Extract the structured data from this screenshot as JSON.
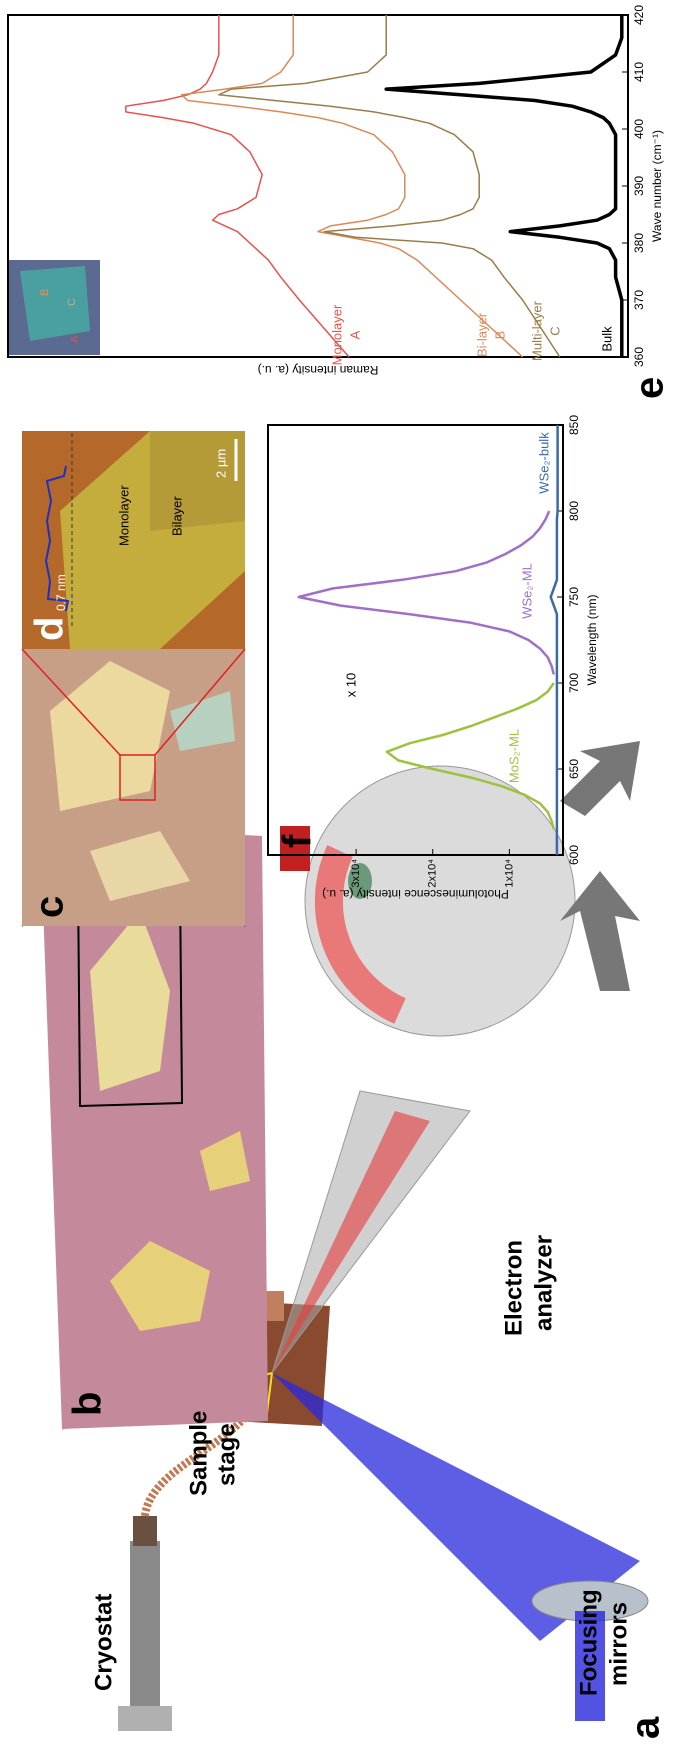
{
  "figure": {
    "panels": [
      "a",
      "b",
      "c",
      "d",
      "e",
      "f"
    ],
    "setup_labels": {
      "cryostat": "Cryostat",
      "sample_stage": [
        "Sample",
        "stage"
      ],
      "focusing_mirrors": [
        "Focusing",
        "mirrors"
      ],
      "electron_analyzer": [
        "Electron",
        "analyzer"
      ]
    },
    "afm": {
      "step": "0.7 nm",
      "monolayer": "Monolayer",
      "bilayer": "Bilayer",
      "scale": "2 µm"
    },
    "inset_labels": [
      "A",
      "B",
      "C"
    ]
  },
  "chart_data": [
    {
      "type": "line",
      "x": [
        600,
        605,
        610,
        615,
        620,
        625,
        630,
        635,
        640,
        645,
        650,
        655,
        660,
        665,
        670,
        675,
        680,
        685,
        690,
        695,
        700,
        705,
        710,
        715,
        720,
        725,
        730,
        735,
        740,
        745,
        750,
        755,
        760,
        765,
        770,
        775,
        780,
        785,
        790,
        795,
        800,
        805,
        810,
        815,
        820,
        825,
        830,
        835,
        840,
        845,
        850
      ],
      "xlim": [
        600,
        850
      ],
      "xticks": [
        600,
        650,
        700,
        750,
        800,
        850
      ],
      "xlabel": "Wavelength (nm)",
      "ylabel": "Photoluminescence intensity (a. u.)",
      "ylim": [
        3000,
        41500
      ],
      "yticks": [
        {
          "value": 10000,
          "label": "1x10⁴"
        },
        {
          "value": 20000,
          "label": "2x10⁴"
        },
        {
          "value": 30000,
          "label": "3x10⁴"
        }
      ],
      "annotation": "x 10",
      "series": [
        {
          "name": "MoS₂-ML",
          "color": "#9dc23c",
          "values": [
            null,
            null,
            null,
            4200,
            4500,
            5000,
            6000,
            8000,
            11000,
            15000,
            20000,
            24500,
            26000,
            23000,
            18500,
            15000,
            12000,
            9000,
            6500,
            5000,
            4200,
            null,
            null,
            null,
            null,
            null,
            null,
            null,
            null,
            null,
            null,
            null,
            null,
            null,
            null,
            null,
            null,
            null,
            null,
            null,
            null,
            null,
            null,
            null,
            null,
            null,
            null,
            null,
            null,
            null,
            null
          ]
        },
        {
          "name": "WSe₂-ML",
          "color": "#a070c8",
          "values": [
            null,
            null,
            null,
            null,
            null,
            null,
            null,
            null,
            null,
            null,
            null,
            null,
            null,
            null,
            null,
            null,
            null,
            null,
            null,
            null,
            null,
            4200,
            4500,
            5000,
            6000,
            7500,
            10000,
            15000,
            23000,
            32000,
            37500,
            33000,
            24000,
            17000,
            13000,
            10500,
            8500,
            7000,
            6000,
            5300,
            4800,
            null,
            null,
            null,
            null,
            null,
            null,
            null,
            null,
            null,
            null
          ]
        },
        {
          "name": "WSe₂-bulk",
          "color": "#3a6aa8",
          "values": [
            3800,
            3800,
            3800,
            3800,
            3800,
            3800,
            3800,
            3800,
            3800,
            3800,
            3800,
            3800,
            3800,
            3800,
            3800,
            3800,
            3800,
            3800,
            3800,
            3800,
            3800,
            3800,
            3800,
            3800,
            3800,
            3800,
            3800,
            3800,
            3800,
            4200,
            4600,
            4200,
            3800,
            3800,
            3800,
            3800,
            3800,
            3800,
            3800,
            3800,
            3700,
            3700,
            3700,
            3700,
            3700,
            3700,
            3700,
            3700,
            3700,
            3700,
            3700
          ]
        }
      ]
    },
    {
      "type": "line",
      "x": [
        360,
        365,
        370,
        374,
        377,
        379,
        380,
        381,
        382,
        383,
        384,
        385,
        386,
        388,
        392,
        396,
        399,
        401,
        402,
        403,
        404,
        405,
        406,
        407,
        408,
        410,
        413,
        416,
        420
      ],
      "xlim": [
        360,
        420
      ],
      "xticks": [
        360,
        370,
        380,
        390,
        400,
        410,
        420
      ],
      "xlabel": "Wave number (cm⁻¹)",
      "ylabel": "Raman intensity (a. u.)",
      "ylim": [
        0,
        100
      ],
      "series": [
        {
          "name": "Monolayer",
          "tag": "A",
          "color": "#e8524e",
          "values": [
            45,
            49,
            53,
            56,
            58,
            60,
            61,
            62,
            63,
            65,
            67,
            66,
            63,
            60,
            59,
            61,
            64,
            70,
            75,
            81,
            81,
            75,
            71,
            69,
            68,
            67,
            66,
            66,
            66
          ]
        },
        {
          "name": "Bi-layer",
          "tag": "B",
          "color": "#d98a5a",
          "values": [
            17,
            22,
            27,
            31,
            34,
            37,
            40,
            45,
            50,
            48,
            42,
            39,
            37,
            36,
            36,
            38,
            41,
            46,
            50,
            56,
            63,
            71,
            72,
            65,
            59,
            56,
            54,
            54,
            54
          ]
        },
        {
          "name": "Multi-layer",
          "tag": "C",
          "color": "#9a7c4a",
          "values": [
            11,
            14,
            17,
            20,
            22,
            25,
            30,
            44,
            49,
            38,
            30,
            27,
            25,
            24,
            24,
            25,
            28,
            32,
            36,
            41,
            48,
            57,
            66,
            64,
            52,
            42,
            39,
            39,
            39
          ]
        },
        {
          "name": "Bulk",
          "color": "#000000",
          "values": [
            1,
            1,
            1,
            2,
            2,
            3,
            5,
            11,
            19,
            11,
            5,
            3,
            2,
            2,
            2,
            2,
            2,
            3,
            4,
            6,
            9,
            15,
            27,
            39,
            24,
            6,
            2,
            1,
            1
          ]
        }
      ]
    }
  ]
}
